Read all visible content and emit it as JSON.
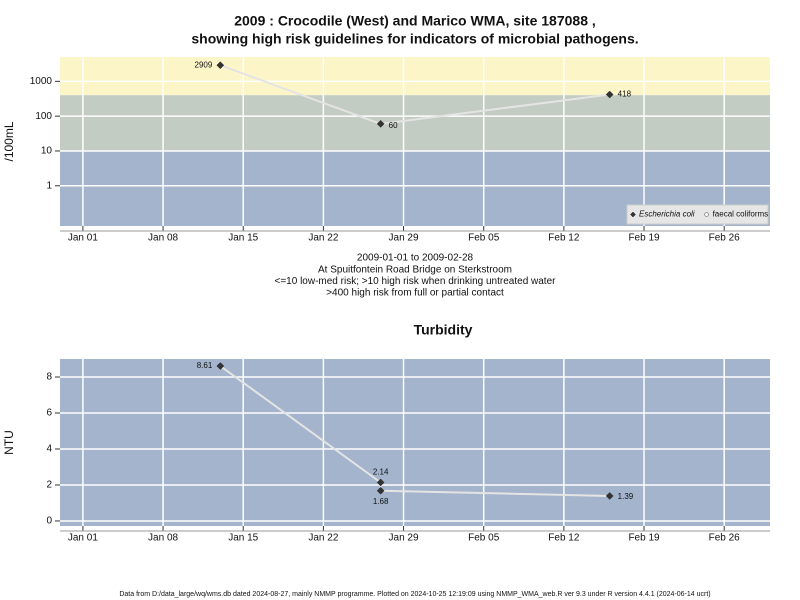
{
  "chart_data": [
    {
      "type": "line",
      "title": [
        "2009 : Crocodile (West) and Marico WMA, site 187088 ,",
        "showing high risk guidelines for indicators of microbial pathogens."
      ],
      "subtitle": [
        "2009-01-01 to 2009-02-28",
        "At Spuitfontein Road Bridge on Sterkstroom",
        "<=10 low-med risk; >10 high risk when drinking untreated water",
        ">400 high risk from full or partial contact"
      ],
      "y_label": "/100mL",
      "log_y": true,
      "grid": true,
      "legend": "bottom-right",
      "x": [
        "2009-01-13",
        "2009-01-27",
        "2009-02-16"
      ],
      "series": [
        {
          "name": "Escherichia coli",
          "color": "#333333",
          "values": [
            2909,
            60,
            418
          ]
        },
        {
          "name": "faecal coliforms",
          "color": "#ffffff",
          "values": [
            null,
            null,
            null
          ]
        }
      ],
      "bands": [
        {
          "lower": 400,
          "color": "#fcf5c8"
        },
        {
          "lower": 10,
          "upper": 400,
          "color": "#c3ccc2"
        },
        {
          "upper": 10,
          "color": "#a3b4cc"
        }
      ],
      "xlim": [
        "2008-12-30",
        "2009-03-02"
      ],
      "xticks": [
        {
          "value": "2009-01-01",
          "label": "Jan 01"
        },
        {
          "value": "2009-01-08",
          "label": "Jan 08"
        },
        {
          "value": "2009-01-15",
          "label": "Jan 15"
        },
        {
          "value": "2009-01-22",
          "label": "Jan 22"
        },
        {
          "value": "2009-01-29",
          "label": "Jan 29"
        },
        {
          "value": "2009-02-05",
          "label": "Feb 05"
        },
        {
          "value": "2009-02-12",
          "label": "Feb 12"
        },
        {
          "value": "2009-02-19",
          "label": "Feb 19"
        },
        {
          "value": "2009-02-26",
          "label": "Feb 26"
        }
      ],
      "ylim": [
        0.07,
        5000
      ],
      "yticks": [
        1,
        10,
        100,
        1000
      ]
    },
    {
      "type": "line",
      "title": "Turbidity",
      "y_label": "NTU",
      "grid": true,
      "background": "#a3b4cc",
      "x": [
        "2009-01-13",
        "2009-01-27",
        "2009-01-27",
        "2009-02-16"
      ],
      "series": [
        {
          "color": "#333333",
          "values": [
            8.61,
            2.14,
            1.68,
            1.39
          ]
        }
      ],
      "xlim": [
        "2008-12-30",
        "2009-03-02"
      ],
      "xticks": [
        {
          "value": "2009-01-01",
          "label": "Jan 01"
        },
        {
          "value": "2009-01-08",
          "label": "Jan 08"
        },
        {
          "value": "2009-01-15",
          "label": "Jan 15"
        },
        {
          "value": "2009-01-22",
          "label": "Jan 22"
        },
        {
          "value": "2009-01-29",
          "label": "Jan 29"
        },
        {
          "value": "2009-02-05",
          "label": "Feb 05"
        },
        {
          "value": "2009-02-12",
          "label": "Feb 12"
        },
        {
          "value": "2009-02-19",
          "label": "Feb 19"
        },
        {
          "value": "2009-02-26",
          "label": "Feb 26"
        }
      ],
      "ylim": [
        -0.28,
        9
      ],
      "yticks": [
        0,
        2,
        4,
        6,
        8
      ]
    }
  ],
  "footer": "Data from D:/data_large/wq/wms.db dated 2024-08-27, mainly NMMP programme. Plotted on 2024-10-25 12:19:09 using NMMP_WMA_web.R ver 9.3 under R version 4.4.1 (2024-06-14 ucrt)"
}
